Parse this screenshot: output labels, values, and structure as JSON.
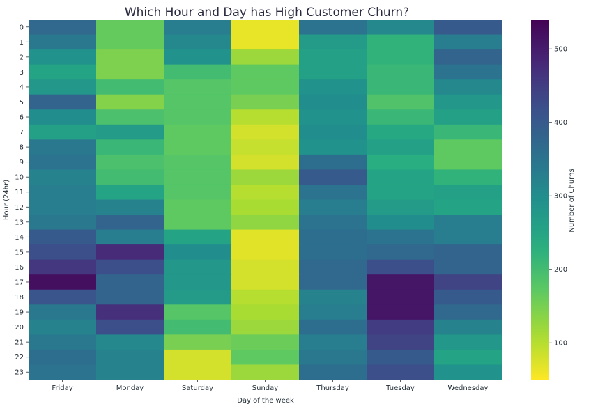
{
  "chart_data": {
    "type": "heatmap",
    "title": "Which Hour and Day has High Customer Churn?",
    "xlabel": "Day of the week",
    "ylabel": "Hour (24hr)",
    "x_categories": [
      "Friday",
      "Monday",
      "Saturday",
      "Sunday",
      "Thursday",
      "Tuesday",
      "Wednesday"
    ],
    "y_categories": [
      "0",
      "1",
      "2",
      "3",
      "4",
      "5",
      "6",
      "7",
      "8",
      "9",
      "10",
      "11",
      "12",
      "13",
      "14",
      "15",
      "16",
      "17",
      "18",
      "19",
      "20",
      "21",
      "22",
      "23"
    ],
    "values": [
      [
        370,
        165,
        330,
        65,
        350,
        310,
        400
      ],
      [
        340,
        165,
        310,
        65,
        270,
        220,
        330
      ],
      [
        290,
        145,
        290,
        120,
        260,
        220,
        380
      ],
      [
        250,
        145,
        200,
        170,
        260,
        210,
        350
      ],
      [
        280,
        200,
        180,
        170,
        290,
        210,
        310
      ],
      [
        380,
        140,
        180,
        150,
        300,
        185,
        280
      ],
      [
        300,
        190,
        180,
        100,
        290,
        210,
        260
      ],
      [
        260,
        270,
        170,
        80,
        300,
        240,
        210
      ],
      [
        340,
        210,
        170,
        90,
        290,
        260,
        170
      ],
      [
        350,
        190,
        180,
        80,
        360,
        230,
        170
      ],
      [
        320,
        200,
        180,
        120,
        400,
        250,
        220
      ],
      [
        330,
        250,
        180,
        100,
        350,
        250,
        260
      ],
      [
        330,
        320,
        170,
        110,
        330,
        270,
        250
      ],
      [
        340,
        380,
        170,
        130,
        350,
        300,
        330
      ],
      [
        400,
        330,
        250,
        70,
        360,
        350,
        330
      ],
      [
        420,
        480,
        300,
        70,
        360,
        370,
        380
      ],
      [
        460,
        420,
        280,
        80,
        370,
        420,
        380
      ],
      [
        520,
        380,
        280,
        80,
        370,
        510,
        440
      ],
      [
        410,
        380,
        270,
        100,
        320,
        510,
        400
      ],
      [
        340,
        470,
        180,
        110,
        330,
        510,
        370
      ],
      [
        320,
        420,
        200,
        120,
        360,
        450,
        320
      ],
      [
        340,
        310,
        150,
        160,
        330,
        440,
        280
      ],
      [
        360,
        320,
        80,
        170,
        340,
        400,
        250
      ],
      [
        350,
        320,
        80,
        120,
        360,
        420,
        290
      ]
    ],
    "colorbar": {
      "label": "Number of Churns",
      "range": [
        50,
        540
      ],
      "ticks": [
        100,
        200,
        300,
        400,
        500
      ],
      "colormap": "viridis_r"
    }
  }
}
